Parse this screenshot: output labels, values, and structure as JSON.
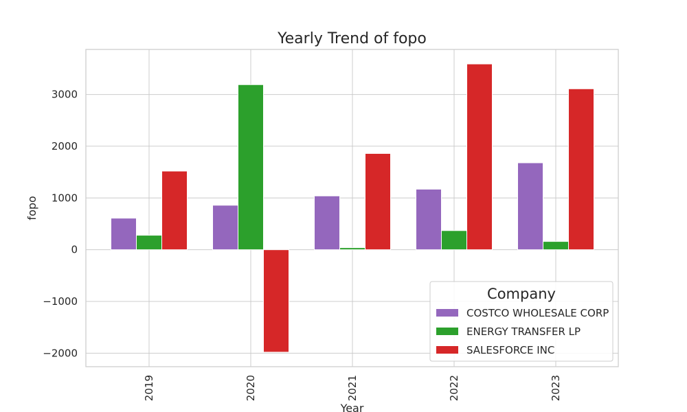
{
  "chart_data": {
    "type": "bar",
    "title": "Yearly Trend of fopo",
    "xlabel": "Year",
    "ylabel": "fopo",
    "categories": [
      "2019",
      "2020",
      "2021",
      "2022",
      "2023"
    ],
    "series": [
      {
        "name": "COSTCO WHOLESALE CORP",
        "color": "#9467bd",
        "values": [
          610,
          860,
          1040,
          1170,
          1680
        ]
      },
      {
        "name": "ENERGY TRANSFER LP",
        "color": "#2ca02c",
        "values": [
          280,
          3190,
          40,
          370,
          160
        ]
      },
      {
        "name": "SALESFORCE INC",
        "color": "#d62728",
        "values": [
          1520,
          -1980,
          1860,
          3590,
          3110
        ]
      }
    ],
    "ylim": [
      -2260,
      3870
    ],
    "yticks": [
      -2000,
      -1000,
      0,
      1000,
      2000,
      3000
    ],
    "ytick_labels": [
      "−2000",
      "−1000",
      "0",
      "1000",
      "2000",
      "3000"
    ],
    "grid": true,
    "legend": {
      "title": "Company",
      "placement": "lower-right"
    }
  }
}
